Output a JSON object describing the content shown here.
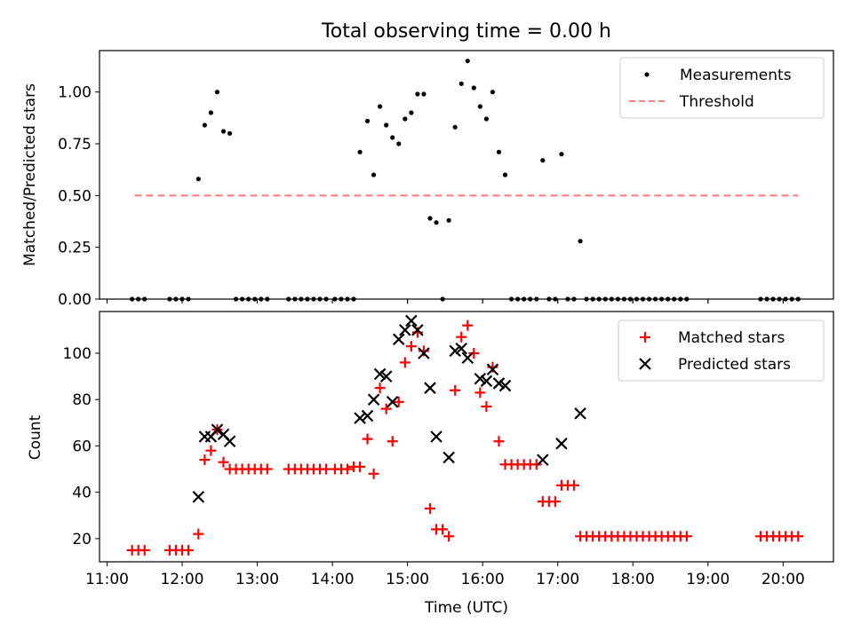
{
  "figure": {
    "title": "Total observing time = 0.00 h",
    "xlabel": "Time (UTC)",
    "xticks": [
      "11:00",
      "12:00",
      "13:00",
      "14:00",
      "15:00",
      "16:00",
      "17:00",
      "18:00",
      "19:00",
      "20:00"
    ],
    "colors": {
      "measurements": "#000000",
      "threshold": "#ff7f7f",
      "matched": "#ff0000",
      "predicted": "#000000"
    }
  },
  "chart_data": [
    {
      "type": "scatter",
      "ylabel": "Matched/Predicted stars",
      "xrange": [
        "11:00",
        "20:40"
      ],
      "xlim_hours": [
        10.9,
        20.67
      ],
      "ylim": [
        0,
        1.2
      ],
      "yticks": [
        "0.00",
        "0.25",
        "0.50",
        "0.75",
        "1.00"
      ],
      "legend_position": "top-right",
      "series": [
        {
          "name": "Measurements",
          "marker": "dot",
          "points": [
            [
              "11:20",
              0
            ],
            [
              "11:25",
              0
            ],
            [
              "11:30",
              0
            ],
            [
              "11:50",
              0
            ],
            [
              "11:55",
              0
            ],
            [
              "12:00",
              0
            ],
            [
              "12:05",
              0
            ],
            [
              "12:13",
              0.58
            ],
            [
              "12:18",
              0.84
            ],
            [
              "12:23",
              0.9
            ],
            [
              "12:28",
              1.0
            ],
            [
              "12:33",
              0.81
            ],
            [
              "12:38",
              0.8
            ],
            [
              "12:43",
              0
            ],
            [
              "12:48",
              0
            ],
            [
              "12:53",
              0
            ],
            [
              "12:58",
              0
            ],
            [
              "13:03",
              0
            ],
            [
              "13:08",
              0
            ],
            [
              "13:25",
              0
            ],
            [
              "13:30",
              0
            ],
            [
              "13:35",
              0
            ],
            [
              "13:40",
              0
            ],
            [
              "13:45",
              0
            ],
            [
              "13:50",
              0
            ],
            [
              "13:55",
              0
            ],
            [
              "14:02",
              0
            ],
            [
              "14:07",
              0
            ],
            [
              "14:12",
              0
            ],
            [
              "14:17",
              0
            ],
            [
              "14:22",
              0.71
            ],
            [
              "14:28",
              0.86
            ],
            [
              "14:33",
              0.6
            ],
            [
              "14:38",
              0.93
            ],
            [
              "14:43",
              0.84
            ],
            [
              "14:48",
              0.78
            ],
            [
              "14:53",
              0.75
            ],
            [
              "14:58",
              0.87
            ],
            [
              "15:03",
              0.9
            ],
            [
              "15:08",
              0.99
            ],
            [
              "15:13",
              0.99
            ],
            [
              "15:18",
              0.39
            ],
            [
              "15:23",
              0.37
            ],
            [
              "15:28",
              0
            ],
            [
              "15:33",
              0.38
            ],
            [
              "15:38",
              0.83
            ],
            [
              "15:43",
              1.04
            ],
            [
              "15:48",
              1.15
            ],
            [
              "15:53",
              1.02
            ],
            [
              "15:58",
              0.93
            ],
            [
              "16:03",
              0.87
            ],
            [
              "16:08",
              1.0
            ],
            [
              "16:13",
              0.71
            ],
            [
              "16:18",
              0.6
            ],
            [
              "16:23",
              0
            ],
            [
              "16:28",
              0
            ],
            [
              "16:33",
              0
            ],
            [
              "16:38",
              0
            ],
            [
              "16:43",
              0
            ],
            [
              "16:48",
              0.67
            ],
            [
              "16:53",
              0
            ],
            [
              "16:58",
              0
            ],
            [
              "17:03",
              0.7
            ],
            [
              "17:08",
              0
            ],
            [
              "17:13",
              0
            ],
            [
              "17:18",
              0.28
            ],
            [
              "17:23",
              0
            ],
            [
              "17:28",
              0
            ],
            [
              "17:33",
              0
            ],
            [
              "17:38",
              0
            ],
            [
              "17:43",
              0
            ],
            [
              "17:48",
              0
            ],
            [
              "17:53",
              0
            ],
            [
              "17:58",
              0
            ],
            [
              "18:03",
              0
            ],
            [
              "18:08",
              0
            ],
            [
              "18:13",
              0
            ],
            [
              "18:18",
              0
            ],
            [
              "18:23",
              0
            ],
            [
              "18:28",
              0
            ],
            [
              "18:33",
              0
            ],
            [
              "18:38",
              0
            ],
            [
              "18:43",
              0
            ],
            [
              "19:42",
              0
            ],
            [
              "19:47",
              0
            ],
            [
              "19:52",
              0
            ],
            [
              "19:57",
              0
            ],
            [
              "20:02",
              0
            ],
            [
              "20:07",
              0
            ],
            [
              "20:12",
              0
            ]
          ]
        },
        {
          "name": "Threshold",
          "marker": "dashed-line",
          "points": [
            [
              "11:22",
              0.5
            ],
            [
              "20:12",
              0.5
            ]
          ]
        }
      ]
    },
    {
      "type": "scatter",
      "ylabel": "Count",
      "xlabel": "Time (UTC)",
      "xrange": [
        "11:00",
        "20:40"
      ],
      "xlim_hours": [
        10.9,
        20.67
      ],
      "ylim": [
        10,
        118
      ],
      "yticks": [
        "20",
        "40",
        "60",
        "80",
        "100"
      ],
      "legend_position": "top-right",
      "series": [
        {
          "name": "Matched stars",
          "marker": "plus",
          "points": [
            [
              "11:20",
              15
            ],
            [
              "11:25",
              15
            ],
            [
              "11:30",
              15
            ],
            [
              "11:50",
              15
            ],
            [
              "11:55",
              15
            ],
            [
              "12:00",
              15
            ],
            [
              "12:05",
              15
            ],
            [
              "12:13",
              22
            ],
            [
              "12:18",
              54
            ],
            [
              "12:23",
              58
            ],
            [
              "12:28",
              67
            ],
            [
              "12:33",
              53
            ],
            [
              "12:38",
              50
            ],
            [
              "12:43",
              50
            ],
            [
              "12:48",
              50
            ],
            [
              "12:53",
              50
            ],
            [
              "12:58",
              50
            ],
            [
              "13:03",
              50
            ],
            [
              "13:08",
              50
            ],
            [
              "13:25",
              50
            ],
            [
              "13:30",
              50
            ],
            [
              "13:35",
              50
            ],
            [
              "13:40",
              50
            ],
            [
              "13:45",
              50
            ],
            [
              "13:50",
              50
            ],
            [
              "13:55",
              50
            ],
            [
              "14:02",
              50
            ],
            [
              "14:07",
              50
            ],
            [
              "14:12",
              50
            ],
            [
              "14:17",
              51
            ],
            [
              "14:22",
              51
            ],
            [
              "14:28",
              63
            ],
            [
              "14:33",
              48
            ],
            [
              "14:38",
              85
            ],
            [
              "14:43",
              76
            ],
            [
              "14:48",
              62
            ],
            [
              "14:53",
              79
            ],
            [
              "14:58",
              96
            ],
            [
              "15:03",
              103
            ],
            [
              "15:08",
              109
            ],
            [
              "15:13",
              101
            ],
            [
              "15:18",
              33
            ],
            [
              "15:23",
              24
            ],
            [
              "15:28",
              24
            ],
            [
              "15:33",
              21
            ],
            [
              "15:38",
              84
            ],
            [
              "15:43",
              107
            ],
            [
              "15:48",
              112
            ],
            [
              "15:53",
              100
            ],
            [
              "15:58",
              83
            ],
            [
              "16:03",
              77
            ],
            [
              "16:08",
              94
            ],
            [
              "16:13",
              62
            ],
            [
              "16:18",
              52
            ],
            [
              "16:23",
              52
            ],
            [
              "16:28",
              52
            ],
            [
              "16:33",
              52
            ],
            [
              "16:38",
              52
            ],
            [
              "16:43",
              52
            ],
            [
              "16:48",
              36
            ],
            [
              "16:53",
              36
            ],
            [
              "16:58",
              36
            ],
            [
              "17:03",
              43
            ],
            [
              "17:08",
              43
            ],
            [
              "17:13",
              43
            ],
            [
              "17:18",
              21
            ],
            [
              "17:23",
              21
            ],
            [
              "17:28",
              21
            ],
            [
              "17:33",
              21
            ],
            [
              "17:38",
              21
            ],
            [
              "17:43",
              21
            ],
            [
              "17:48",
              21
            ],
            [
              "17:53",
              21
            ],
            [
              "17:58",
              21
            ],
            [
              "18:03",
              21
            ],
            [
              "18:08",
              21
            ],
            [
              "18:13",
              21
            ],
            [
              "18:18",
              21
            ],
            [
              "18:23",
              21
            ],
            [
              "18:28",
              21
            ],
            [
              "18:33",
              21
            ],
            [
              "18:38",
              21
            ],
            [
              "18:43",
              21
            ],
            [
              "19:42",
              21
            ],
            [
              "19:47",
              21
            ],
            [
              "19:52",
              21
            ],
            [
              "19:57",
              21
            ],
            [
              "20:02",
              21
            ],
            [
              "20:07",
              21
            ],
            [
              "20:12",
              21
            ]
          ]
        },
        {
          "name": "Predicted stars",
          "marker": "x",
          "points": [
            [
              "12:13",
              38
            ],
            [
              "12:18",
              64
            ],
            [
              "12:23",
              64
            ],
            [
              "12:28",
              67
            ],
            [
              "12:33",
              65
            ],
            [
              "12:38",
              62
            ],
            [
              "14:22",
              72
            ],
            [
              "14:28",
              73
            ],
            [
              "14:33",
              80
            ],
            [
              "14:38",
              91
            ],
            [
              "14:43",
              90
            ],
            [
              "14:48",
              79
            ],
            [
              "14:53",
              106
            ],
            [
              "14:58",
              110
            ],
            [
              "15:03",
              114
            ],
            [
              "15:08",
              110
            ],
            [
              "15:13",
              100
            ],
            [
              "15:18",
              85
            ],
            [
              "15:23",
              64
            ],
            [
              "15:33",
              55
            ],
            [
              "15:38",
              101
            ],
            [
              "15:43",
              102
            ],
            [
              "15:48",
              98
            ],
            [
              "15:58",
              89
            ],
            [
              "16:03",
              88
            ],
            [
              "16:08",
              93
            ],
            [
              "16:13",
              87
            ],
            [
              "16:18",
              86
            ],
            [
              "16:48",
              54
            ],
            [
              "17:03",
              61
            ],
            [
              "17:18",
              74
            ]
          ]
        }
      ]
    }
  ]
}
